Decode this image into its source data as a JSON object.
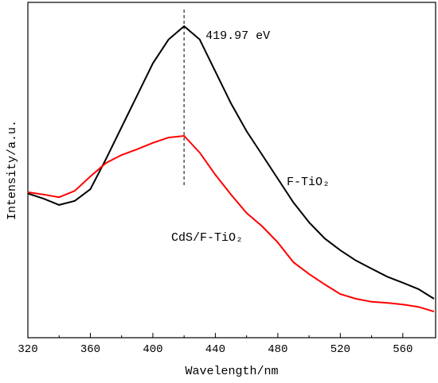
{
  "chart_data": {
    "type": "line",
    "x_label": "Wavelength/nm",
    "y_label": "Intensity/a.u.",
    "annotation": "419.97 eV",
    "marker_x": 419.97,
    "x": [
      320,
      330,
      340,
      350,
      360,
      370,
      380,
      390,
      400,
      410,
      420,
      430,
      440,
      450,
      460,
      470,
      480,
      490,
      500,
      510,
      520,
      530,
      540,
      550,
      560,
      570,
      580
    ],
    "series": [
      {
        "name": "F-TiO₂",
        "color": "#000000",
        "values": [
          43,
          41.5,
          39.6,
          40.8,
          44.3,
          53.3,
          62.8,
          72.3,
          81.8,
          88.9,
          92.9,
          88.9,
          79.4,
          69.9,
          61.6,
          54.5,
          47.4,
          40.3,
          34.4,
          29.6,
          26.1,
          23,
          20.6,
          18.2,
          16.4,
          14.5,
          11.6
        ]
      },
      {
        "name": "CdS/F-TiO₂",
        "color": "#ff0000",
        "values": [
          43.4,
          42.7,
          41.9,
          43.8,
          48.1,
          52.1,
          54.5,
          56.2,
          58.1,
          59.7,
          60.2,
          55.2,
          48.6,
          42.7,
          37.2,
          33.2,
          28.4,
          22.5,
          19,
          15.9,
          13,
          11.6,
          10.7,
          10.4,
          9.9,
          9.2,
          7.8
        ]
      }
    ],
    "xlim": [
      320,
      581
    ],
    "xticks": [
      320,
      360,
      400,
      440,
      480,
      520,
      560
    ],
    "ylim": [
      0,
      100
    ]
  }
}
